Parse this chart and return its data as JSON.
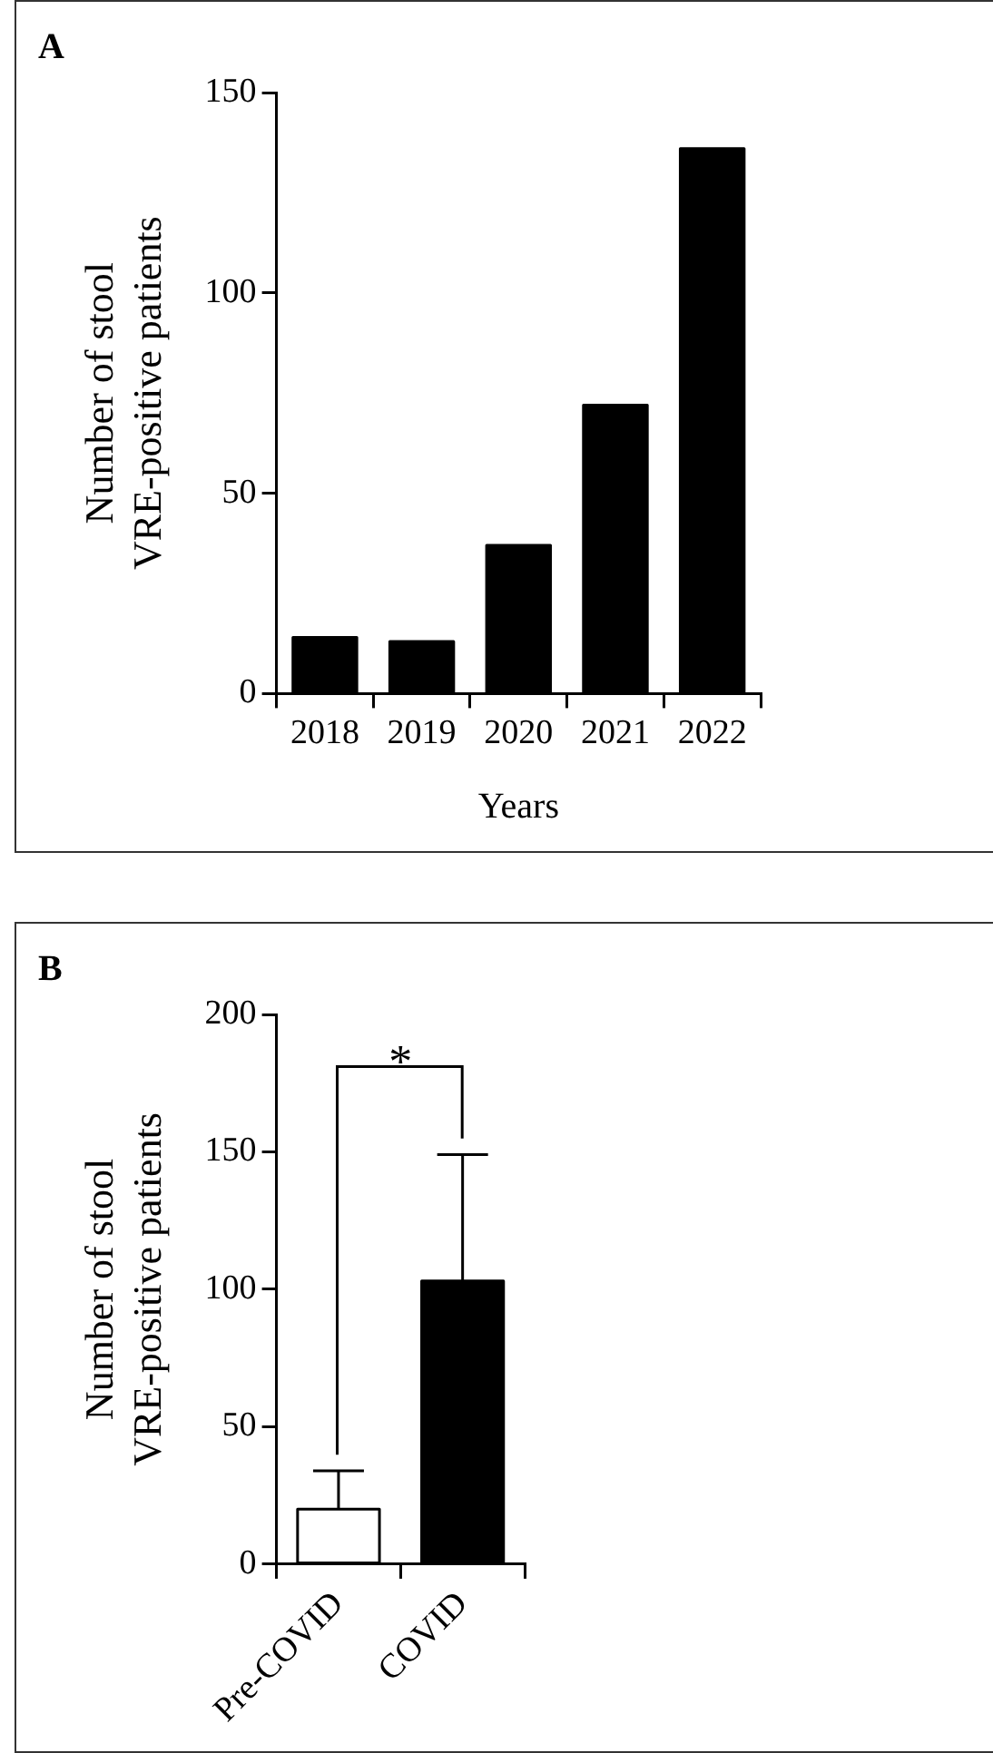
{
  "chart_data": [
    {
      "type": "bar",
      "title": "A",
      "xlabel": "Years",
      "ylabel": "Number of stool\nVRE-positive patients",
      "categories": [
        "2018",
        "2019",
        "2020",
        "2021",
        "2022"
      ],
      "values": [
        14,
        13,
        37,
        72,
        136
      ],
      "color": "#000000",
      "ylim": [
        0,
        150
      ],
      "yticks": [
        0,
        50,
        100,
        150
      ],
      "grid": false
    },
    {
      "type": "bar",
      "title": "B",
      "ylabel": "Number of stool\nVRE-positive patients",
      "categories": [
        "Pre-COVID",
        "COVID"
      ],
      "values": [
        20,
        103
      ],
      "colors": [
        "#ffffff",
        "#000000"
      ],
      "errors": [
        [
          20,
          34
        ],
        [
          103,
          149
        ]
      ],
      "ylim": [
        0,
        200
      ],
      "yticks": [
        0,
        50,
        100,
        150,
        200
      ],
      "grid": false,
      "annotations": [
        "*"
      ]
    }
  ]
}
